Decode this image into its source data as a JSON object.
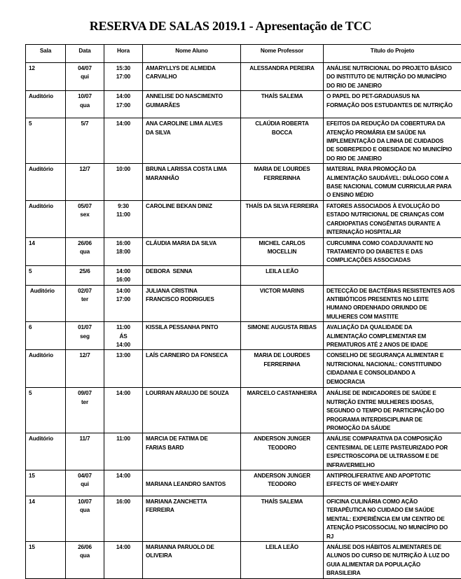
{
  "title": "RESERVA DE SALAS 2019.1 - Apresentação de TCC",
  "columns": [
    "Sala",
    "Data",
    "Hora",
    "Nome  Aluno",
    "Nome Professor",
    "Título do Projeto"
  ],
  "rows": [
    {
      "sala": "12",
      "data": [
        "04/07",
        "qui"
      ],
      "hora": [
        "15:30",
        "17:00"
      ],
      "aluno": [
        "AMARYLLYS DE ALMEIDA",
        "CARVALHO"
      ],
      "prof": [
        "ALESSANDRA PEREIRA"
      ],
      "titulo": [
        "ANÁLISE NUTRICIONAL DO PROJETO BÁSICO",
        "DO INSTITUTO DE NUTRIÇÃO DO MUNICÍPIO",
        "DO RIO DE JANEIRO"
      ]
    },
    {
      "sala": "Auditório",
      "data": [
        "10/07",
        "qua"
      ],
      "hora": [
        "14:00",
        "17:00"
      ],
      "aluno": [
        "ANNELISE DO NASCIMENTO",
        "GUIMARÃES"
      ],
      "prof": [
        "THAÍS SALEMA"
      ],
      "titulo": [
        "O PAPEL DO PET-GRADUASUS NA",
        "FORMAÇÃO DOS ESTUDANTES DE NUTRIÇÃO"
      ]
    },
    {
      "sala": "5",
      "data": [
        "5/7"
      ],
      "hora": [
        "14:00"
      ],
      "aluno": [
        "ANA CAROLINE LIMA ALVES",
        "DA SILVA"
      ],
      "prof": [
        "CLAÚDIA ROBERTA",
        "BOCCA"
      ],
      "titulo": [
        "EFEITOS DA REDUÇÃO DA COBERTURA DA",
        "ATENÇÃO PROMÁRIA EM SAÚDE NA",
        "IMPLEMENTAÇÃO DA LINHA DE CUIDADOS",
        "DE SOBREPEDO E OBESIDADE NO MUNICÍPIO",
        "DO RIO DE JANEIRO"
      ]
    },
    {
      "sala": "Auditório",
      "data": [
        "12/7"
      ],
      "hora": [
        "10:00"
      ],
      "aluno": [
        "BRUNA LARISSA COSTA LIMA",
        "MARANHÃO"
      ],
      "prof": [
        "MARIA DE LOURDES",
        "FERRERINHA"
      ],
      "titulo": [
        "MATERIAL PARA PROMOÇÃO DA",
        "ALIMENTAÇÃO SAUDÁVEL: DIÁLOGO COM A",
        "BASE NACIONAL COMUM CURRICULAR PARA",
        "O ENSINO MÉDIO"
      ]
    },
    {
      "sala": "Auditório",
      "data": [
        "05/07",
        "sex"
      ],
      "hora": [
        "9:30",
        "11:00"
      ],
      "aluno": [
        "CAROLINE BEKAN DINIZ"
      ],
      "prof": [
        "THAÍS DA SILVA FERREIRA"
      ],
      "titulo": [
        "FATORES ASSOCIADOS À EVOLUÇÃO DO",
        "ESTADO NUTRICIONAL DE CRIANÇAS COM",
        "CARDIOPATIAS CONGÊNITAS DURANTE A",
        "INTERNAÇÃO HOSPITALAR"
      ]
    },
    {
      "sala": "14",
      "data": [
        "26/06",
        "qua"
      ],
      "hora": [
        "16:00",
        "18:00"
      ],
      "aluno": [
        "CLÁUDIA MARIA DA SILVA"
      ],
      "prof": [
        "MICHEL CARLOS",
        "MOCELLIN"
      ],
      "titulo": [
        "CURCUMINA COMO COADJUVANTE NO",
        "TRATAMENTO DO DIABETES E DAS",
        "COMPLICAÇÕES ASSOCIADAS"
      ]
    },
    {
      "sala": "5",
      "data": [
        "25/6"
      ],
      "hora": [
        "14:00",
        "16:00"
      ],
      "aluno": [
        "DEBORA  SENNA"
      ],
      "prof": [
        "LEILA LEÃO"
      ],
      "titulo": []
    },
    {
      "sala": " Auditório",
      "data": [
        "02/07",
        "ter"
      ],
      "hora": [
        "14:00",
        "17:00"
      ],
      "aluno": [
        "JULIANA CRISTINA",
        "FRANCISCO RODRIGUES"
      ],
      "prof": [
        "VICTOR MARINS"
      ],
      "titulo": [
        "DETECÇÃO DE BACTÉRIAS RESISTENTES AOS",
        "ANTIBIÓTICOS PRESENTES NO LEITE",
        "HUMANO ORDENHADO ORIUNDO DE",
        "MULHERES COM MASTITE"
      ]
    },
    {
      "sala": "6",
      "data": [
        "01/07",
        "seg"
      ],
      "hora": [
        "11:00",
        "ÁS",
        "14:00"
      ],
      "aluno": [
        "KISSILA PESSANHA PINTO"
      ],
      "prof": [
        "SIMONE AUGUSTA RIBAS"
      ],
      "titulo": [
        "AVALIAÇÃO DA QUALIDADE DA",
        "ALIMENTAÇÃO COMPLEMENTAR EM",
        "PREMATUROS ATÉ 2 ANOS DE IDADE"
      ]
    },
    {
      "sala": "Auditório",
      "data": [
        "12/7"
      ],
      "hora": [
        "13:00"
      ],
      "aluno": [
        "LAÍS CARNEIRO DA FONSECA"
      ],
      "prof": [
        "MARIA DE LOURDES",
        "FERRERINHA"
      ],
      "titulo": [
        "CONSELHO DE SEGURANÇA ALIMENTAR E",
        "NUTRICIONAL NACIONAL: CONSTITUINDO",
        "CIDADANIA E CONSOLIDANDO A",
        "DEMOCRACIA"
      ]
    },
    {
      "sala": "5",
      "data": [
        "09/07",
        "ter"
      ],
      "hora": [
        "14:00"
      ],
      "aluno": [
        "LOURRAN ARAUJO DE SOUZA"
      ],
      "prof": [
        "MARCELO CASTANHEIRA"
      ],
      "titulo": [
        "ANÁLISE DE INDICADORES DE SAÚDE E",
        "NUTRIÇÃO ENTRE MULHERES IDOSAS,",
        "SEGUNDO O TEMPO DE PARTICIPAÇÃO DO",
        "PROGRAMA INTERDISCIPLINAR DE",
        "PROMOÇÃO DA SÁUDE"
      ]
    },
    {
      "sala": "Auditório",
      "data": [
        "11/7"
      ],
      "hora": [
        "11:00"
      ],
      "aluno": [
        "MARCIA DE FATIMA DE",
        "FARIAS BARD"
      ],
      "prof": [
        "ANDERSON JUNGER",
        "TEODORO"
      ],
      "titulo": [
        "ANÁLISE COMPARATIVA DA COMPOSIÇÃO",
        "CENTESIMAL DE LEITE PASTEURIZADO POR",
        "ESPECTROSCOPIA DE ULTRASSOM E DE",
        "INFRAVERMELHO"
      ]
    },
    {
      "sala": "15",
      "data": [
        "04/07",
        "qui"
      ],
      "hora": [
        "14:00"
      ],
      "aluno": [
        "",
        "MARIANA LEANDRO SANTOS"
      ],
      "prof": [
        "ANDERSON JUNGER",
        "TEODORO"
      ],
      "titulo": [
        "ANTIPROLIFERATIVE AND APOPTOTIC",
        "EFFECTS OF WHEY-DAIRY"
      ]
    },
    {
      "sala": "14",
      "data": [
        "10/07",
        "qua"
      ],
      "hora": [
        "16:00"
      ],
      "aluno": [
        "MARIANA ZANCHETTA",
        "FERREIRA"
      ],
      "prof": [
        "THAÍS SALEMA"
      ],
      "titulo": [
        "OFICINA CULINÁRIA COMO AÇÃO",
        "TERAPÊUTICA NO CUIDADO EM SAÚDE",
        "MENTAL: EXPERIÊNCIA EM UM CENTRO DE",
        "ATENÇÃO PSICOSSOCIAL NO MUNICÍPIO DO",
        "RJ"
      ]
    },
    {
      "sala": "15",
      "data": [
        "26/06",
        "qua"
      ],
      "hora": [
        "14:00"
      ],
      "aluno": [
        "MARIANNA PARUOLO DE",
        "OLIVEIRA"
      ],
      "prof": [
        "LEILA LEÃO"
      ],
      "titulo": [
        "ANÁLISE DOS HÁBITOS ALIMENTARES DE",
        "ALUNOS DO CURSO DE NUTRIÇÃO À LUZ DO",
        "GUIA ALIMENTAR DA POPULAÇÃO",
        "BRASILEIRA"
      ]
    }
  ]
}
